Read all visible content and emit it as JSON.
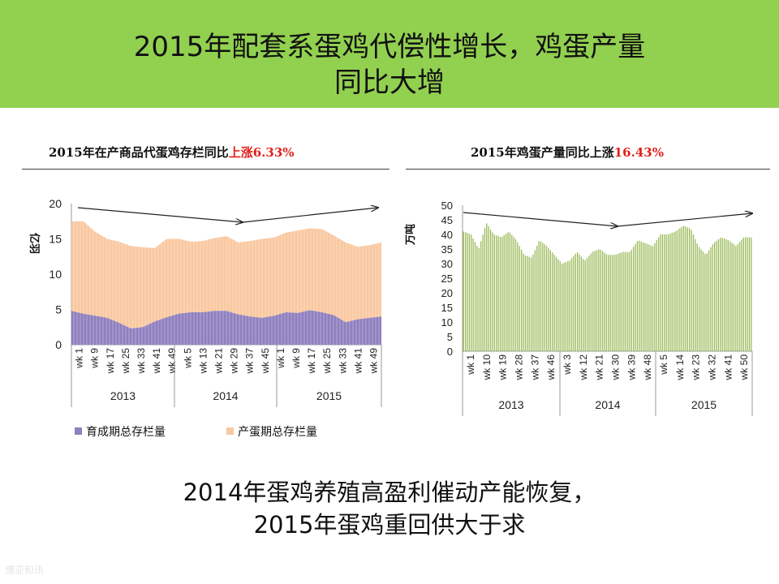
{
  "slide": {
    "title_line1": "2015年配套系蛋鸡代偿性增长，鸡蛋产量",
    "title_line2": "同比大增",
    "conclusion_line1": "2014年蛋鸡养殖高盈利催动产能恢复，",
    "conclusion_line2": "2015年蛋鸡重回供大于求",
    "footer_text": "博亚和讯",
    "colors": {
      "header_bg": "#92d050",
      "highlight": "#e0201b"
    }
  },
  "chart_data": [
    {
      "type": "area",
      "title_prefix": "2015年在产商品代蛋鸡存栏同比",
      "title_highlight": "上涨6.33%",
      "ylabel": "亿羽",
      "ylim": [
        0,
        20
      ],
      "yticks": [
        "0",
        "5",
        "10",
        "15",
        "20"
      ],
      "stacked": true,
      "xticks": [
        "wk 1",
        "wk 9",
        "wk 17",
        "wk 25",
        "wk 33",
        "wk 41",
        "wk 49",
        "wk 5",
        "wk 13",
        "wk 21",
        "wk 29",
        "wk 37",
        "wk 45",
        "wk 1",
        "wk 9",
        "wk 17",
        "wk 25",
        "wk 33",
        "wk 41",
        "wk 49"
      ],
      "years": [
        "2013",
        "2014",
        "2015"
      ],
      "legend_position": "bottom",
      "series": [
        {
          "name": "育成期总存栏量",
          "color": "#8f7fbf",
          "values": [
            4.8,
            4.4,
            4.1,
            3.8,
            3.1,
            2.3,
            2.5,
            3.3,
            3.9,
            4.4,
            4.6,
            4.6,
            4.8,
            4.8,
            4.3,
            4.0,
            3.8,
            4.1,
            4.6,
            4.5,
            4.9,
            4.6,
            4.2,
            3.2,
            3.6,
            3.8,
            4.0
          ]
        },
        {
          "name": "产蛋期总存栏量",
          "color": "#f9c8a0",
          "values": [
            12.7,
            13.1,
            11.9,
            11.2,
            11.5,
            11.7,
            11.3,
            10.4,
            11.1,
            10.6,
            10.0,
            10.1,
            10.3,
            10.6,
            10.2,
            10.7,
            11.2,
            11.1,
            11.3,
            11.7,
            11.6,
            11.8,
            11.3,
            11.3,
            10.3,
            10.3,
            10.5
          ]
        }
      ]
    },
    {
      "type": "bar",
      "title_prefix": "2015年鸡蛋产量同比上涨",
      "title_highlight": "16.43%",
      "ylabel": "万吨",
      "ylim": [
        0,
        50
      ],
      "yticks": [
        "0",
        "5",
        "10",
        "15",
        "20",
        "25",
        "30",
        "35",
        "40",
        "45",
        "50"
      ],
      "xticks": [
        "wk 1",
        "wk 10",
        "wk 19",
        "wk 28",
        "wk 37",
        "wk 46",
        "wk 3",
        "wk 12",
        "wk 21",
        "wk 30",
        "wk 39",
        "wk 48",
        "wk 5",
        "wk 14",
        "wk 23",
        "wk 32",
        "wk 41",
        "wk 50"
      ],
      "years": [
        "2013",
        "2014",
        "2015"
      ],
      "series": [
        {
          "name": "",
          "color": "#9bbb59",
          "values": [
            41,
            40,
            35,
            44,
            40,
            39,
            41,
            38,
            33,
            32,
            38,
            36,
            33,
            30,
            31,
            34,
            31,
            34,
            35,
            33,
            33,
            34,
            34,
            38,
            37,
            36,
            40,
            40,
            41,
            43,
            42,
            36,
            33,
            37,
            39,
            38,
            36,
            39,
            39
          ]
        }
      ]
    }
  ]
}
